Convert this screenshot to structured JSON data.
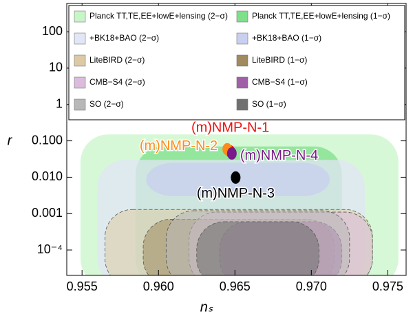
{
  "chart_data": {
    "type": "region",
    "x_label": "nₛ",
    "y_label": "r",
    "log_y": true,
    "xlim": [
      0.954,
      0.9762
    ],
    "ylim": [
      2e-05,
      600
    ],
    "xticks": [
      0.955,
      {
        "value": 0.96,
        "label": "0.960"
      },
      0.965,
      {
        "value": 0.97,
        "label": "0.970"
      },
      0.975
    ],
    "yticks": [
      100,
      10,
      1,
      {
        "value": 0.1,
        "label": "0.100"
      },
      {
        "value": 0.01,
        "label": "0.010"
      },
      {
        "value": 0.001,
        "label": "0.001"
      },
      {
        "value": 0.0001,
        "label": "10⁻⁴"
      }
    ],
    "series": [
      {
        "name": "Planck TT,TE,EE+lowE+lensing (2−σ)",
        "color": "#c8f5c8",
        "x": [
          0.9549,
          0.9757
        ],
        "y": [
          1e-05,
          0.15
        ]
      },
      {
        "name": "Planck TT,TE,EE+lowE+lensing (1−σ)",
        "color": "#7fe08a",
        "x": [
          0.9585,
          0.972
        ],
        "y": [
          1e-05,
          0.07
        ]
      },
      {
        "name": "+BK18+BAO (2−σ)",
        "color": "#e2e6f6",
        "x": [
          0.956,
          0.9735
        ],
        "y": [
          1e-05,
          0.03
        ]
      },
      {
        "name": "+BK18+BAO (1−σ)",
        "color": "#c8cff0",
        "x": [
          0.9592,
          0.9712
        ],
        "y": [
          0.003,
          0.025
        ]
      },
      {
        "name": "LiteBIRD (2−σ)",
        "color": "#dccaa4",
        "x": [
          0.9565,
          0.974
        ],
        "y": [
          1e-05,
          0.0013
        ]
      },
      {
        "name": "LiteBIRD (1−σ)",
        "color": "#a08a5e",
        "x": [
          0.959,
          0.9715
        ],
        "y": [
          1e-05,
          0.0007
        ]
      },
      {
        "name": "CMB−S4 (2−σ)",
        "color": "#dcbcdc",
        "x": [
          0.962,
          0.974
        ],
        "y": [
          1e-05,
          0.0011
        ]
      },
      {
        "name": "CMB−S4 (1−σ)",
        "color": "#a060a8",
        "x": [
          0.964,
          0.972
        ],
        "y": [
          1e-05,
          0.0006
        ]
      },
      {
        "name": "SO (2−σ)",
        "color": "#b8b8b8",
        "x": [
          0.9605,
          0.9725
        ],
        "y": [
          1e-05,
          0.0012
        ]
      },
      {
        "name": "SO (1−σ)",
        "color": "#707070",
        "x": [
          0.9625,
          0.9705
        ],
        "y": [
          1e-05,
          0.0006
        ]
      }
    ],
    "points": [
      {
        "name": "(m)NMP-N-1",
        "color": "#ee1111",
        "x": 0.9647,
        "y": 0.051
      },
      {
        "name": "(m)NMP-N-2",
        "color": "#ff8c1a",
        "x": 0.9645,
        "y": 0.059
      },
      {
        "name": "(m)NMP-N-4",
        "color": "#7a1a8a",
        "x": 0.9648,
        "y": 0.045
      },
      {
        "name": "(m)NMP-N-3",
        "color": "#000000",
        "x": 0.96505,
        "y": 0.0098
      }
    ]
  }
}
